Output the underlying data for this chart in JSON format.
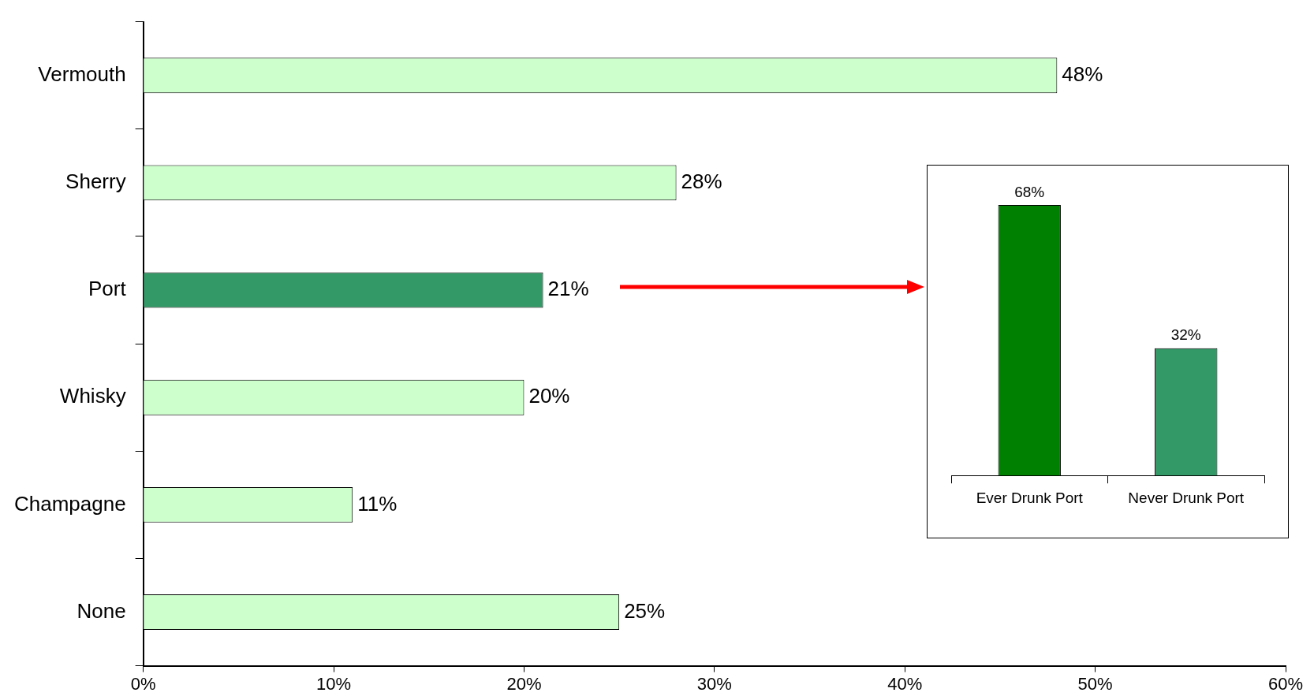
{
  "chart_data": [
    {
      "type": "bar",
      "orientation": "horizontal",
      "categories": [
        "Vermouth",
        "Sherry",
        "Port",
        "Whisky",
        "Champagne",
        "None"
      ],
      "values": [
        48,
        28,
        21,
        20,
        11,
        25
      ],
      "colors": [
        "#ccffcc",
        "#ccffcc",
        "#339966",
        "#ccffcc",
        "#ccffcc",
        "#ccffcc"
      ],
      "value_labels": [
        "48%",
        "28%",
        "21%",
        "20%",
        "11%",
        "25%"
      ],
      "xlim": [
        0,
        60
      ],
      "xticks": [
        {
          "value": 0,
          "label": "0%"
        },
        {
          "value": 10,
          "label": "10%"
        },
        {
          "value": 20,
          "label": "20%"
        },
        {
          "value": 30,
          "label": "30%"
        },
        {
          "value": 40,
          "label": "40%"
        },
        {
          "value": 50,
          "label": "50%"
        },
        {
          "value": 60,
          "label": "60%"
        }
      ],
      "grid": false,
      "legend": false
    },
    {
      "type": "bar",
      "categories": [
        "Ever Drunk Port",
        "Never Drunk Port"
      ],
      "values": [
        68,
        32
      ],
      "colors": [
        "#008000",
        "#339966"
      ],
      "value_labels": [
        "68%",
        "32%"
      ],
      "tick_labels": "x",
      "grid": false,
      "legend": false
    }
  ]
}
